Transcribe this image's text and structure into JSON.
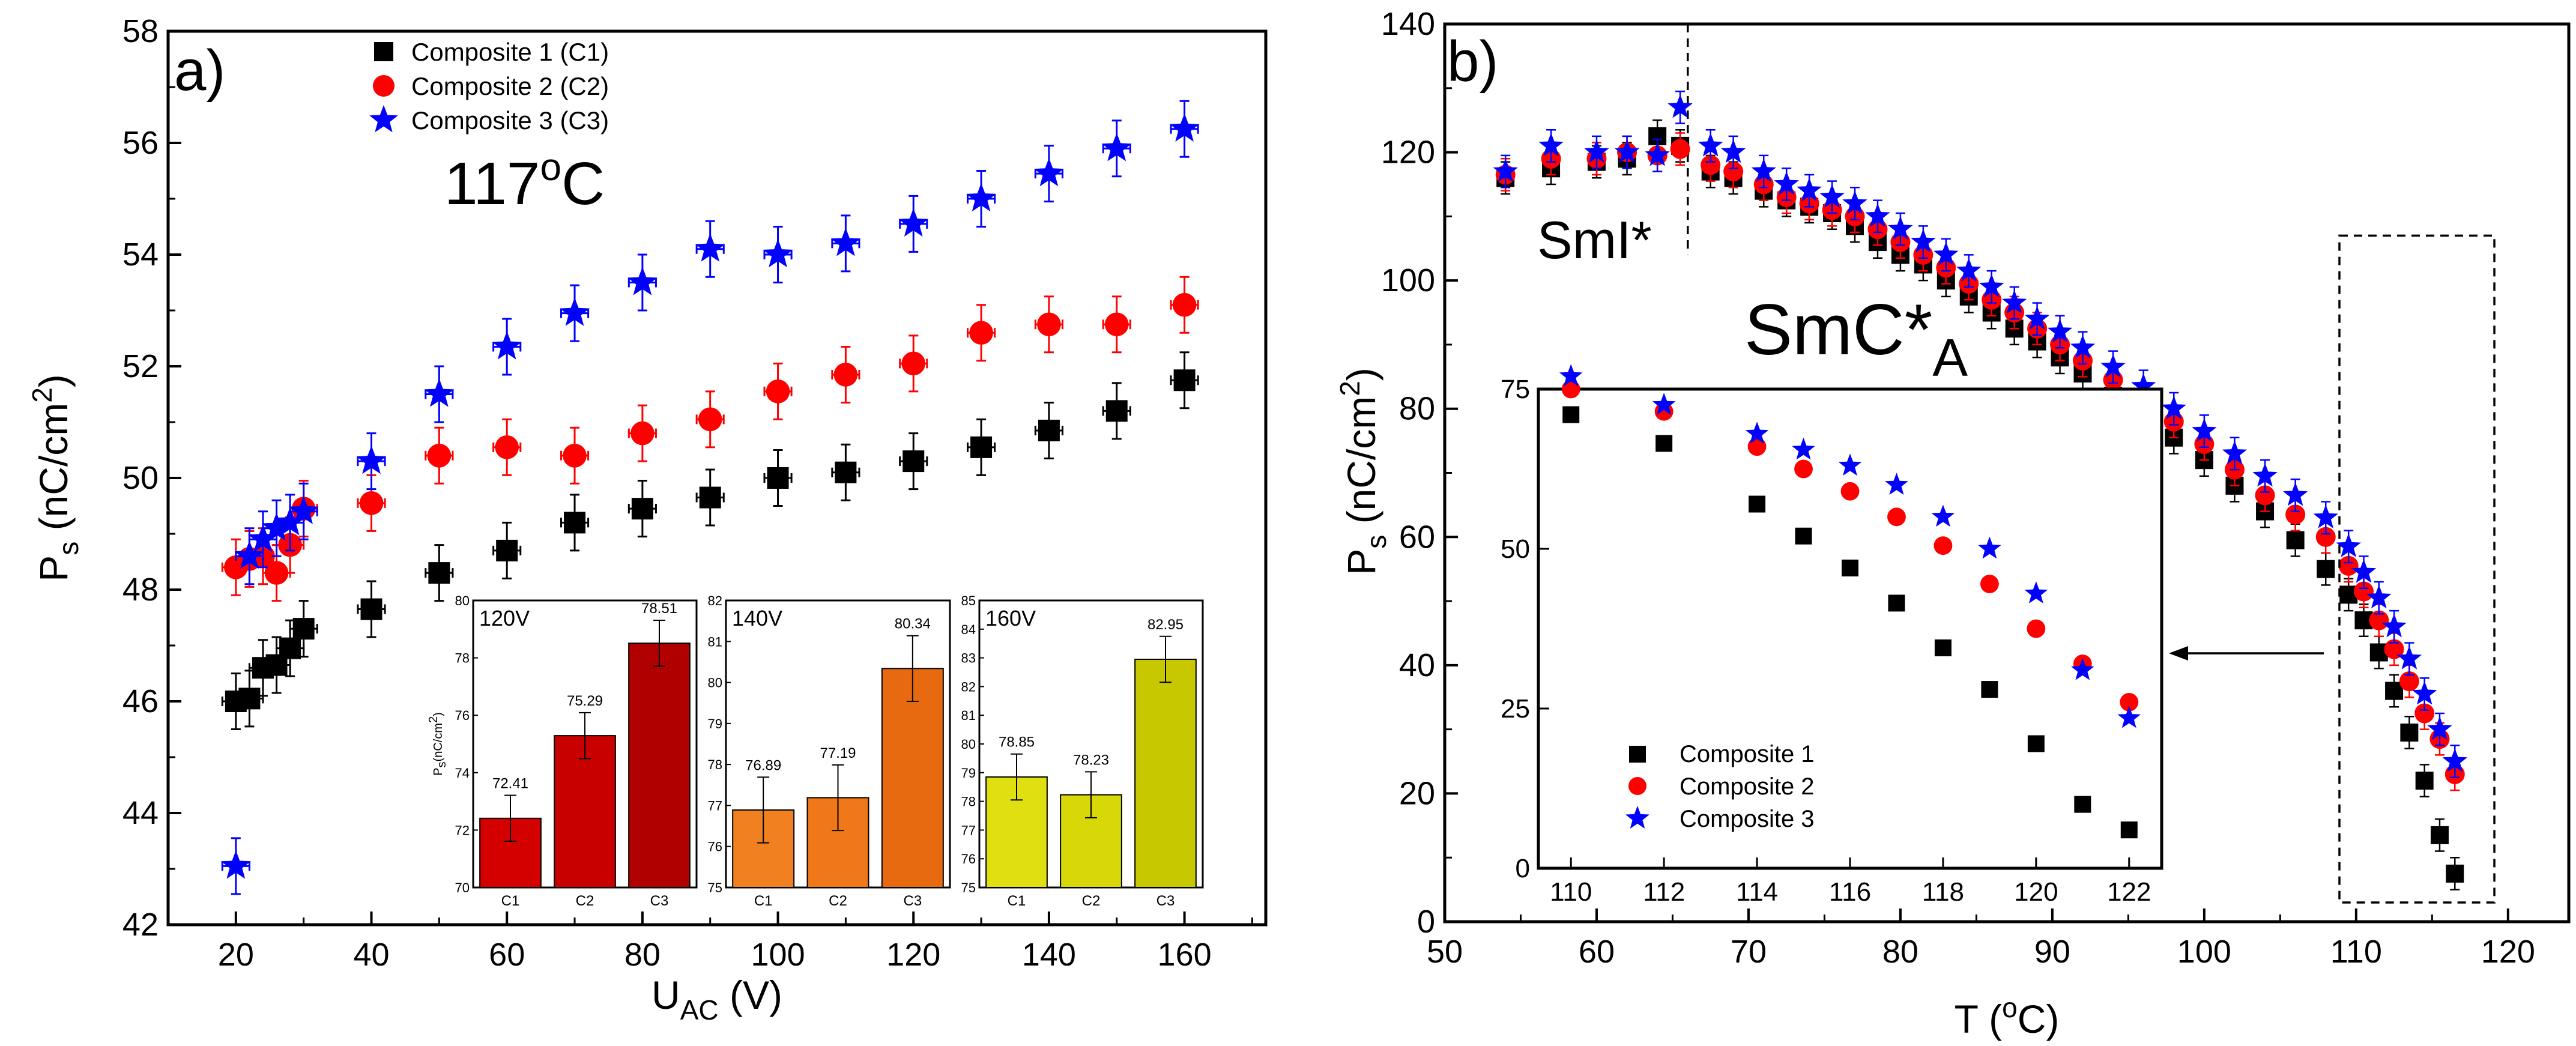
{
  "chart_data": [
    {
      "panel": "a",
      "type": "scatter",
      "panel_label": "a)",
      "annotation": "117",
      "annotation_sup": "o",
      "annotation_suffix": "C",
      "xlabel": "U",
      "xlabel_sub": "AC",
      "xlabel_suffix": " (V)",
      "ylabel": "P",
      "ylabel_sub": "s",
      "ylabel_suffix": " (nC/cm",
      "ylabel_sup": "2",
      "ylabel_end": ")",
      "xlim": [
        10,
        172
      ],
      "ylim": [
        42,
        58
      ],
      "xticks": [
        20,
        40,
        60,
        80,
        100,
        120,
        140,
        160
      ],
      "yticks": [
        42,
        44,
        46,
        48,
        50,
        52,
        54,
        56,
        58
      ],
      "x_err": 2,
      "y_err": 0.5,
      "series": [
        {
          "name": "Composite 1 (C1)",
          "marker": "square",
          "color": "#000000",
          "points": [
            [
              20,
              46.0
            ],
            [
              22,
              46.05
            ],
            [
              24,
              46.6
            ],
            [
              26,
              46.65
            ],
            [
              28,
              46.95
            ],
            [
              30,
              47.3
            ],
            [
              40,
              47.65
            ],
            [
              50,
              48.3
            ],
            [
              60,
              48.7
            ],
            [
              70,
              49.2
            ],
            [
              80,
              49.45
            ],
            [
              90,
              49.65
            ],
            [
              100,
              50.0
            ],
            [
              110,
              50.1
            ],
            [
              120,
              50.3
            ],
            [
              130,
              50.55
            ],
            [
              140,
              50.85
            ],
            [
              150,
              51.2
            ],
            [
              160,
              51.75
            ]
          ]
        },
        {
          "name": "Composite 2 (C2)",
          "marker": "circle",
          "color": "#ff0000",
          "points": [
            [
              20,
              48.4
            ],
            [
              22,
              48.55
            ],
            [
              24,
              48.6
            ],
            [
              26,
              48.3
            ],
            [
              28,
              48.8
            ],
            [
              30,
              49.45
            ],
            [
              40,
              49.55
            ],
            [
              50,
              50.4
            ],
            [
              60,
              50.55
            ],
            [
              70,
              50.4
            ],
            [
              80,
              50.8
            ],
            [
              90,
              51.05
            ],
            [
              100,
              51.55
            ],
            [
              110,
              51.85
            ],
            [
              120,
              52.05
            ],
            [
              130,
              52.6
            ],
            [
              140,
              52.75
            ],
            [
              150,
              52.75
            ],
            [
              160,
              53.1
            ]
          ]
        },
        {
          "name": "Composite 3 (C3)",
          "marker": "star",
          "color": "#0000ff",
          "points": [
            [
              20,
              43.05
            ],
            [
              22,
              48.6
            ],
            [
              24,
              48.9
            ],
            [
              26,
              49.1
            ],
            [
              28,
              49.2
            ],
            [
              30,
              49.4
            ],
            [
              40,
              50.3
            ],
            [
              50,
              51.5
            ],
            [
              60,
              52.35
            ],
            [
              70,
              52.95
            ],
            [
              80,
              53.5
            ],
            [
              90,
              54.1
            ],
            [
              100,
              54.0
            ],
            [
              110,
              54.2
            ],
            [
              120,
              54.55
            ],
            [
              130,
              55.0
            ],
            [
              140,
              55.45
            ],
            [
              150,
              55.9
            ],
            [
              160,
              56.25
            ]
          ]
        }
      ],
      "insets": [
        {
          "label": "120V",
          "ylabel": "P",
          "ylabel_sub": "s",
          "ylabel_suffix": "(nC/cm",
          "ylabel_sup": "2",
          "ylabel_end": ")",
          "categories": [
            "C1",
            "C2",
            "C3"
          ],
          "values": [
            72.41,
            75.29,
            78.51
          ],
          "errors": [
            0.8,
            0.8,
            0.8
          ],
          "value_labels": [
            "72.41",
            "75.29",
            "78.51"
          ],
          "ylim": [
            70,
            80
          ],
          "yticks": [
            70,
            72,
            74,
            76,
            78,
            80
          ],
          "colors": [
            "#d40000",
            "#c80000",
            "#b00000"
          ]
        },
        {
          "label": "140V",
          "categories": [
            "C1",
            "C2",
            "C3"
          ],
          "values": [
            76.89,
            77.19,
            80.34
          ],
          "errors": [
            0.8,
            0.8,
            0.8
          ],
          "value_labels": [
            "76.89",
            "77.19",
            "80.34"
          ],
          "ylim": [
            75,
            82
          ],
          "yticks": [
            75,
            76,
            77,
            78,
            79,
            80,
            81,
            82
          ],
          "colors": [
            "#f08020",
            "#f07818",
            "#e86a10"
          ]
        },
        {
          "label": "160V",
          "categories": [
            "C1",
            "C2",
            "C3"
          ],
          "values": [
            78.85,
            78.23,
            82.95
          ],
          "errors": [
            0.8,
            0.8,
            0.8
          ],
          "value_labels": [
            "78.85",
            "78.23",
            "82.95"
          ],
          "ylim": [
            75,
            85
          ],
          "yticks": [
            75,
            76,
            77,
            78,
            79,
            80,
            81,
            82,
            83,
            84,
            85
          ],
          "colors": [
            "#e0e010",
            "#d8d808",
            "#c8c800"
          ]
        }
      ]
    },
    {
      "panel": "b",
      "type": "scatter",
      "panel_label": "b)",
      "phase_left": "SmI*",
      "phase_right": "SmC*",
      "phase_right_sub": "A",
      "xlabel": "T (",
      "xlabel_sup": "o",
      "xlabel_suffix": "C)",
      "ylabel": "P",
      "ylabel_sub": "s",
      "ylabel_suffix": " (nC/cm",
      "ylabel_sup": "2",
      "ylabel_end": ")",
      "xlim": [
        50,
        124
      ],
      "ylim": [
        0,
        140
      ],
      "xticks": [
        50,
        60,
        70,
        80,
        90,
        100,
        110,
        120
      ],
      "yticks": [
        0,
        20,
        40,
        60,
        80,
        100,
        120,
        140
      ],
      "phase_boundary_x": 66,
      "y_err": 2.5,
      "series": [
        {
          "name": "Composite 1",
          "marker": "square",
          "color": "#000000",
          "points": [
            [
              54,
              116
            ],
            [
              57,
              117.5
            ],
            [
              60,
              118.5
            ],
            [
              62,
              119
            ],
            [
              64,
              122.5
            ],
            [
              65.5,
              121
            ],
            [
              67.5,
              117
            ],
            [
              69,
              116
            ],
            [
              71,
              114
            ],
            [
              72.5,
              112.5
            ],
            [
              74,
              111.5
            ],
            [
              75.5,
              110.5
            ],
            [
              77,
              108.5
            ],
            [
              78.5,
              106
            ],
            [
              80,
              104
            ],
            [
              81.5,
              102.5
            ],
            [
              83,
              100
            ],
            [
              84.5,
              97.5
            ],
            [
              86,
              95
            ],
            [
              87.5,
              92.5
            ],
            [
              89,
              90.5
            ],
            [
              90.5,
              88
            ],
            [
              92,
              85.5
            ],
            [
              94,
              82
            ],
            [
              96,
              78.5
            ],
            [
              98,
              75.5
            ],
            [
              100,
              72
            ],
            [
              102,
              68
            ],
            [
              104,
              64
            ],
            [
              106,
              59.5
            ],
            [
              108,
              55
            ],
            [
              109.5,
              51
            ],
            [
              110.5,
              47
            ],
            [
              111.5,
              42
            ],
            [
              112.5,
              36
            ],
            [
              113.5,
              29.5
            ],
            [
              114.5,
              22
            ],
            [
              115.5,
              13.5
            ],
            [
              116.5,
              7.5
            ]
          ]
        },
        {
          "name": "Composite 2",
          "marker": "circle",
          "color": "#ff0000",
          "points": [
            [
              54,
              116.5
            ],
            [
              57,
              119
            ],
            [
              60,
              119
            ],
            [
              62,
              120
            ],
            [
              64,
              119.5
            ],
            [
              65.5,
              120.5
            ],
            [
              67.5,
              118
            ],
            [
              69,
              117
            ],
            [
              71,
              115
            ],
            [
              72.5,
              113
            ],
            [
              74,
              112
            ],
            [
              75.5,
              111
            ],
            [
              77,
              110
            ],
            [
              78.5,
              108
            ],
            [
              80,
              106
            ],
            [
              81.5,
              104
            ],
            [
              83,
              102
            ],
            [
              84.5,
              99.5
            ],
            [
              86,
              97
            ],
            [
              87.5,
              95
            ],
            [
              89,
              92.5
            ],
            [
              90.5,
              90
            ],
            [
              92,
              87.5
            ],
            [
              94,
              84.5
            ],
            [
              96,
              81.5
            ],
            [
              98,
              78
            ],
            [
              100,
              74.5
            ],
            [
              102,
              70.5
            ],
            [
              104,
              66.5
            ],
            [
              106,
              63.5
            ],
            [
              108,
              60
            ],
            [
              109.5,
              55.5
            ],
            [
              110.5,
              51.5
            ],
            [
              111.5,
              47
            ],
            [
              112.5,
              42.5
            ],
            [
              113.5,
              37.5
            ],
            [
              114.5,
              32.5
            ],
            [
              115.5,
              28.5
            ],
            [
              116.5,
              23
            ]
          ]
        },
        {
          "name": "Composite 3",
          "marker": "star",
          "color": "#0000ff",
          "points": [
            [
              54,
              117
            ],
            [
              57,
              121
            ],
            [
              60,
              120
            ],
            [
              62,
              120
            ],
            [
              64,
              119.5
            ],
            [
              65.5,
              127
            ],
            [
              67.5,
              121
            ],
            [
              69,
              120
            ],
            [
              71,
              117
            ],
            [
              72.5,
              115
            ],
            [
              74,
              114
            ],
            [
              75.5,
              113
            ],
            [
              77,
              112
            ],
            [
              78.5,
              110
            ],
            [
              80,
              108
            ],
            [
              81.5,
              106
            ],
            [
              83,
              104
            ],
            [
              84.5,
              101.5
            ],
            [
              86,
              99
            ],
            [
              87.5,
              96.5
            ],
            [
              89,
              94
            ],
            [
              90.5,
              92
            ],
            [
              92,
              89.5
            ],
            [
              94,
              86.5
            ],
            [
              96,
              83.5
            ],
            [
              98,
              80
            ],
            [
              100,
              76.5
            ],
            [
              102,
              73
            ],
            [
              104,
              69.5
            ],
            [
              106,
              66.5
            ],
            [
              108,
              63
            ],
            [
              109.5,
              58.5
            ],
            [
              110.5,
              54.5
            ],
            [
              111.5,
              50.5
            ],
            [
              112.5,
              46
            ],
            [
              113.5,
              41
            ],
            [
              114.5,
              35.5
            ],
            [
              115.5,
              30
            ],
            [
              116.5,
              25
            ]
          ]
        }
      ],
      "inset": {
        "xlim": [
          109.3,
          122.7
        ],
        "ylim": [
          0,
          75
        ],
        "xticks": [
          110,
          112,
          114,
          116,
          118,
          120,
          122
        ],
        "yticks": [
          0,
          25,
          50,
          75
        ],
        "series": [
          {
            "name": "Composite 1",
            "marker": "square",
            "color": "#000000",
            "points": [
              [
                110,
                71
              ],
              [
                112,
                66.5
              ],
              [
                114,
                57
              ],
              [
                115,
                52
              ],
              [
                116,
                47
              ],
              [
                117,
                41.5
              ],
              [
                118,
                34.5
              ],
              [
                119,
                28
              ],
              [
                120,
                19.5
              ],
              [
                121,
                10
              ],
              [
                122,
                6
              ]
            ]
          },
          {
            "name": "Composite 2",
            "marker": "circle",
            "color": "#ff0000",
            "points": [
              [
                110,
                75
              ],
              [
                112,
                71.5
              ],
              [
                114,
                66
              ],
              [
                115,
                62.5
              ],
              [
                116,
                59
              ],
              [
                117,
                55
              ],
              [
                118,
                50.5
              ],
              [
                119,
                44.5
              ],
              [
                120,
                37.5
              ],
              [
                121,
                32
              ],
              [
                122,
                26
              ]
            ]
          },
          {
            "name": "Composite 3",
            "marker": "star",
            "color": "#0000ff",
            "points": [
              [
                110,
                77
              ],
              [
                112,
                72.5
              ],
              [
                114,
                68
              ],
              [
                115,
                65.5
              ],
              [
                116,
                63
              ],
              [
                117,
                60
              ],
              [
                118,
                55
              ],
              [
                119,
                50
              ],
              [
                120,
                43
              ],
              [
                121,
                31
              ],
              [
                122,
                23.5
              ]
            ]
          }
        ]
      }
    }
  ]
}
